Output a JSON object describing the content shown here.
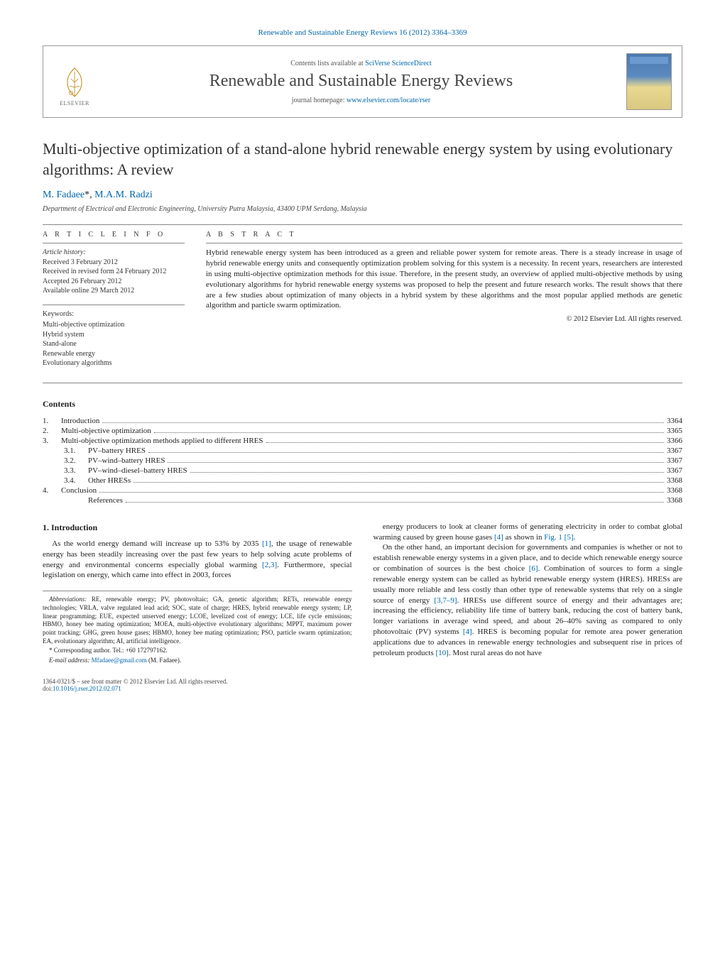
{
  "colors": {
    "link": "#0066aa",
    "text": "#222222",
    "rule": "#888888",
    "background": "#ffffff"
  },
  "typography": {
    "title_fontsize": 22,
    "journal_fontsize": 24,
    "body_fontsize": 11,
    "small_fontsize": 10,
    "tiny_fontsize": 9,
    "font_family": "Georgia, 'Times New Roman', serif"
  },
  "header": {
    "citation": "Renewable and Sustainable Energy Reviews 16 (2012) 3364–3369",
    "contents_prefix": "Contents lists available at ",
    "contents_link": "SciVerse ScienceDirect",
    "journal": "Renewable and Sustainable Energy Reviews",
    "homepage_prefix": "journal homepage: ",
    "homepage_link": "www.elsevier.com/locate/rser",
    "publisher_logo_text": "ELSEVIER"
  },
  "article": {
    "title": "Multi-objective optimization of a stand-alone hybrid renewable energy system by using evolutionary algorithms: A review",
    "authors_html": "M. Fadaee *, M.A.M. Radzi",
    "author1": "M. Fadaee",
    "author1_mark": "*",
    "author_sep": ", ",
    "author2": "M.A.M. Radzi",
    "affiliation": "Department of Electrical and Electronic Engineering, University Putra Malaysia, 43400 UPM Serdang, Malaysia"
  },
  "info": {
    "heading": "a r t i c l e   i n f o",
    "history_label": "Article history:",
    "received": "Received 3 February 2012",
    "revised": "Received in revised form 24 February 2012",
    "accepted": "Accepted 26 February 2012",
    "online": "Available online 29 March 2012",
    "keywords_label": "Keywords:",
    "keywords": [
      "Multi-objective optimization",
      "Hybrid system",
      "Stand-alone",
      "Renewable energy",
      "Evolutionary algorithms"
    ]
  },
  "abstract": {
    "heading": "a b s t r a c t",
    "body": "Hybrid renewable energy system has been introduced as a green and reliable power system for remote areas. There is a steady increase in usage of hybrid renewable energy units and consequently optimization problem solving for this system is a necessity. In recent years, researchers are interested in using multi-objective optimization methods for this issue. Therefore, in the present study, an overview of applied multi-objective methods by using evolutionary algorithms for hybrid renewable energy systems was proposed to help the present and future research works. The result shows that there are a few studies about optimization of many objects in a hybrid system by these algorithms and the most popular applied methods are genetic algorithm and particle swarm optimization.",
    "copyright": "© 2012 Elsevier Ltd. All rights reserved."
  },
  "contents": {
    "title": "Contents",
    "items": [
      {
        "num": "1.",
        "label": "Introduction",
        "page": "3364",
        "level": 0
      },
      {
        "num": "2.",
        "label": "Multi-objective optimization",
        "page": "3365",
        "level": 0
      },
      {
        "num": "3.",
        "label": "Multi-objective optimization methods applied to different HRES",
        "page": "3366",
        "level": 0
      },
      {
        "num": "3.1.",
        "label": "PV–battery HRES",
        "page": "3367",
        "level": 1
      },
      {
        "num": "3.2.",
        "label": "PV–wind–battery HRES",
        "page": "3367",
        "level": 1
      },
      {
        "num": "3.3.",
        "label": "PV–wind–diesel–battery HRES",
        "page": "3367",
        "level": 1
      },
      {
        "num": "3.4.",
        "label": "Other HRESs",
        "page": "3368",
        "level": 1
      },
      {
        "num": "4.",
        "label": "Conclusion",
        "page": "3368",
        "level": 0
      },
      {
        "num": "",
        "label": "References",
        "page": "3368",
        "level": 1
      }
    ]
  },
  "body": {
    "section1_heading": "1. Introduction",
    "para1a": "As the world energy demand will increase up to 53% by 2035 ",
    "ref1": "[1]",
    "para1b": ", the usage of renewable energy has been steadily increasing over the past few years to help solving acute problems of energy and environmental concerns especially global warming ",
    "ref23": "[2,3]",
    "para1c": ". Furthermore, special legislation on energy, which came into effect in 2003, forces",
    "para2a": "energy producers to look at cleaner forms of generating electricity in order to combat global warming caused by green house gases ",
    "ref4": "[4]",
    "para2b": " as shown in ",
    "fig1": "Fig. 1",
    "para2c": " ",
    "ref5": "[5]",
    "para2d": ".",
    "para3a": "On the other hand, an important decision for governments and companies is whether or not to establish renewable energy systems in a given place, and to decide which renewable energy source or combination of sources is the best choice ",
    "ref6": "[6]",
    "para3b": ". Combination of sources to form a single renewable energy system can be called as hybrid renewable energy system (HRES). HRESs are usually more reliable and less costly than other type of renewable systems that rely on a single source of energy ",
    "ref379": "[3,7–9]",
    "para3c": ". HRESs use different source of energy and their advantages are; increasing the efficiency, reliability life time of battery bank, reducing the cost of battery bank, longer variations in average wind speed, and about 26–40% saving as compared to only photovoltaic (PV) systems ",
    "ref4b": "[4]",
    "para3d": ". HRES is becoming popular for remote area power generation applications due to advances in renewable energy technologies and subsequent rise in prices of petroleum products ",
    "ref10": "[10]",
    "para3e": ". Most rural areas do not have"
  },
  "footnotes": {
    "abbrev_label": "Abbreviations:",
    "abbrev_body": " RE, renewable energy; PV, photovoltaic; GA, genetic algorithm; RETs, renewable energy technologies; VRLA, valve regulated lead acid; SOC, state of charge; HRES, hybrid renewable energy system; LP, linear programming; EUE, expected unserved energy; LCOE, levelized cost of energy; LCE, life cycle emissions; HBMO, honey bee mating optimization; MOEA, multi-objective evolutionary algorithms; MPPT, maximum power point tracking; GHG, green house gases; HBMO, honey bee mating optimization; PSO, particle swarm optimization; EA, evolutionary algorithm; AI, artificial intelligence.",
    "corr_label": "* Corresponding author. Tel.: +60 172797162.",
    "email_label": "E-mail address: ",
    "email": "Mfadaee@gmail.com",
    "email_suffix": " (M. Fadaee)."
  },
  "footer": {
    "left1": "1364-0321/$ – see front matter © 2012 Elsevier Ltd. All rights reserved.",
    "left2_prefix": "doi:",
    "doi": "10.1016/j.rser.2012.02.071"
  }
}
